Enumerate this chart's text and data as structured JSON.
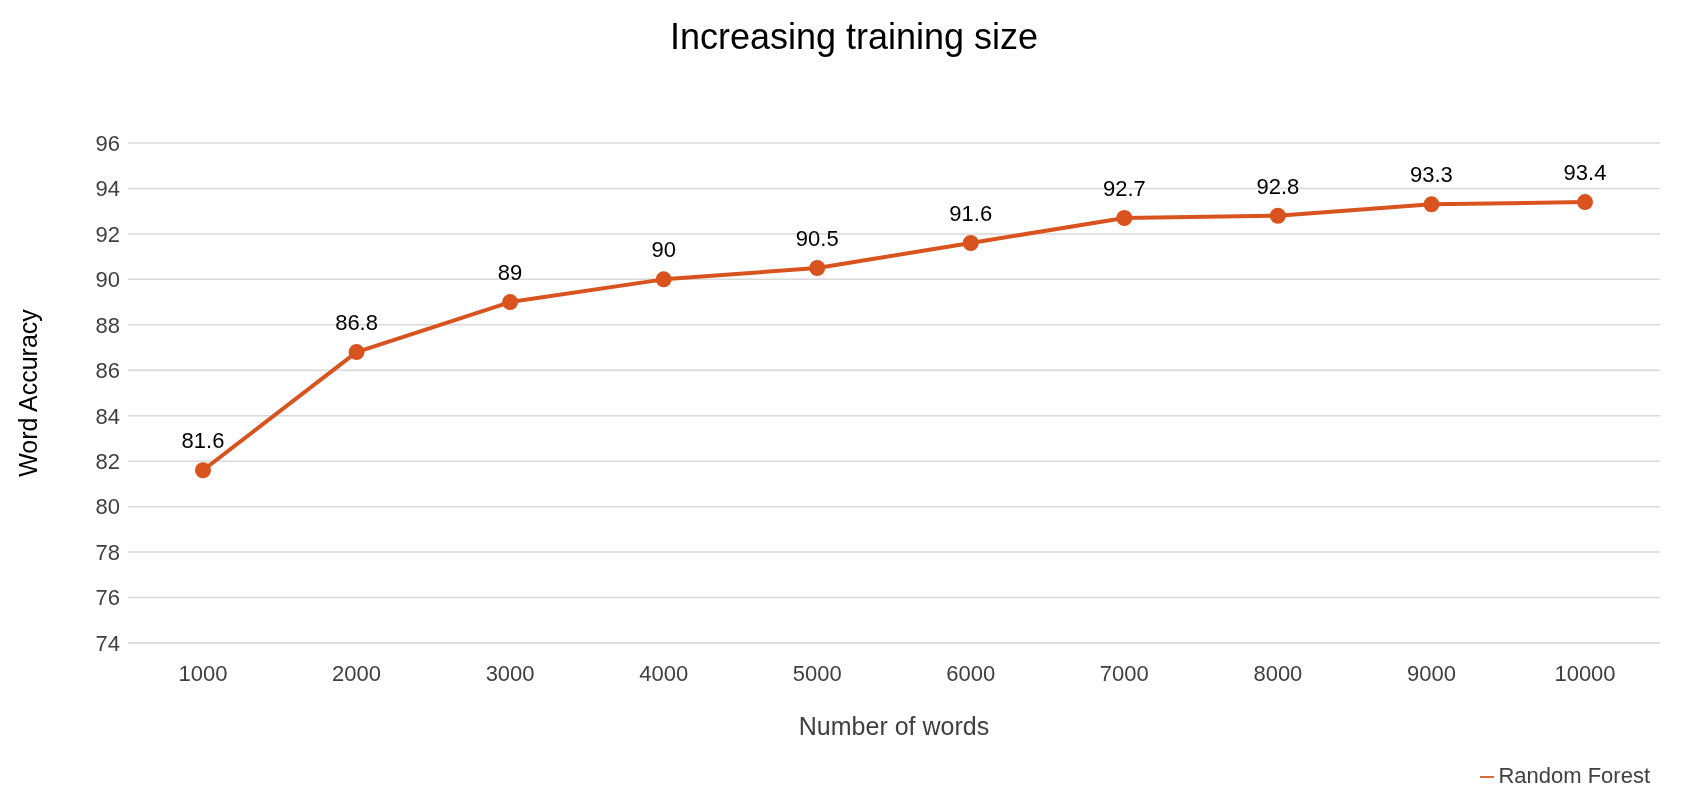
{
  "chart_data": {
    "type": "line",
    "title": "Increasing training size",
    "xlabel": "Number of words",
    "ylabel": "Word Accuracy",
    "categories": [
      "1000",
      "2000",
      "3000",
      "4000",
      "5000",
      "6000",
      "7000",
      "8000",
      "9000",
      "10000"
    ],
    "series": [
      {
        "name": "Random Forest",
        "color": "#d9531e",
        "values": [
          81.6,
          86.8,
          89,
          90,
          90.5,
          91.6,
          92.7,
          92.8,
          93.3,
          93.4
        ]
      }
    ],
    "ylim": [
      74,
      96
    ],
    "yticks": [
      74,
      76,
      78,
      80,
      82,
      84,
      86,
      88,
      90,
      92,
      94,
      96
    ],
    "grid": "y",
    "legend": "bottom right",
    "marker": "circle",
    "line_style": "solid",
    "data_labels": true
  }
}
